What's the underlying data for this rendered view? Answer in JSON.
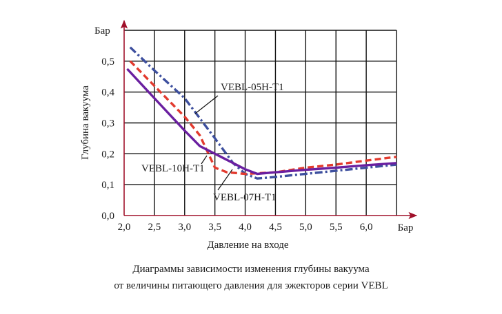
{
  "chart_data": {
    "type": "line",
    "xlabel": "Давление на входе",
    "x_unit": "Бар",
    "ylabel": "Глубина вакуума",
    "y_unit": "Бар",
    "xlim": [
      2.0,
      6.5
    ],
    "ylim": [
      0.0,
      0.6
    ],
    "x_ticks": [
      "2,0",
      "2,5",
      "3,0",
      "3,5",
      "4,0",
      "4,5",
      "5,0",
      "5,5",
      "6,0"
    ],
    "y_ticks": [
      "0,0",
      "0,1",
      "0,2",
      "0,3",
      "0,4",
      "0,5"
    ],
    "grid": true,
    "series": [
      {
        "name": "VEBL-05H-T1",
        "color": "#3d4f9e",
        "style": "dashdot",
        "points": [
          [
            2.1,
            0.545
          ],
          [
            2.5,
            0.47
          ],
          [
            3.0,
            0.38
          ],
          [
            3.5,
            0.25
          ],
          [
            3.8,
            0.17
          ],
          [
            4.0,
            0.135
          ],
          [
            4.2,
            0.12
          ],
          [
            4.5,
            0.125
          ],
          [
            5.0,
            0.135
          ],
          [
            5.5,
            0.145
          ],
          [
            6.0,
            0.155
          ],
          [
            6.5,
            0.165
          ]
        ]
      },
      {
        "name": "VEBL-07H-T1",
        "color": "#e23a2e",
        "style": "dashed",
        "points": [
          [
            2.1,
            0.5
          ],
          [
            2.5,
            0.42
          ],
          [
            3.0,
            0.32
          ],
          [
            3.25,
            0.26
          ],
          [
            3.5,
            0.155
          ],
          [
            3.7,
            0.14
          ],
          [
            4.0,
            0.135
          ],
          [
            4.5,
            0.14
          ],
          [
            5.0,
            0.155
          ],
          [
            5.5,
            0.165
          ],
          [
            6.0,
            0.178
          ],
          [
            6.5,
            0.19
          ]
        ]
      },
      {
        "name": "VEBL-10H-T1",
        "color": "#6a1fa0",
        "style": "solid",
        "points": [
          [
            2.05,
            0.475
          ],
          [
            2.5,
            0.38
          ],
          [
            3.0,
            0.275
          ],
          [
            3.25,
            0.225
          ],
          [
            3.5,
            0.2
          ],
          [
            3.8,
            0.17
          ],
          [
            4.0,
            0.15
          ],
          [
            4.2,
            0.135
          ],
          [
            4.5,
            0.14
          ],
          [
            5.0,
            0.148
          ],
          [
            5.5,
            0.155
          ],
          [
            6.0,
            0.163
          ],
          [
            6.5,
            0.17
          ]
        ]
      }
    ],
    "annotations": {
      "v05": "VEBL-05H-T1",
      "v10": "VEBL-10H-T1",
      "v07": "VEBL-07H-T1"
    }
  },
  "caption": {
    "line1": "Диаграммы зависимости изменения глубины вакуума",
    "line2": "от величины питающего давления для эжекторов серии VEBL"
  }
}
